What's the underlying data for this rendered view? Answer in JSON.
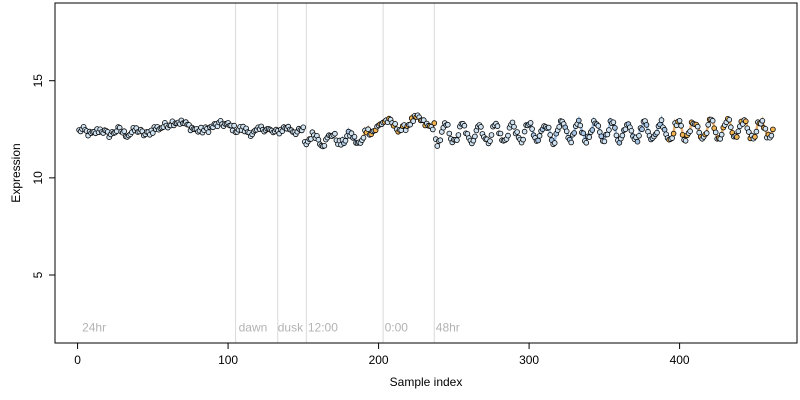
{
  "chart_data": {
    "type": "scatter",
    "title": "",
    "xlabel": "Sample index",
    "ylabel": "Expression",
    "xlim": [
      -15,
      478
    ],
    "ylim": [
      1.5,
      19.0
    ],
    "x_ticks": [
      0,
      100,
      200,
      300,
      400
    ],
    "y_ticks": [
      5,
      10,
      15
    ],
    "grid": false,
    "legend": "none",
    "colors": {
      "point_default": "#cfe3f2",
      "point_orange": "#f2b450",
      "point_blue": "#a7c6e6",
      "line_orange": "#e2a357",
      "line_blue": "#8fb3dd",
      "vline": "#d9d9d9",
      "annotation": "#b3b3b3"
    },
    "vertical_lines": [
      105,
      133,
      152,
      203,
      237
    ],
    "annotations": [
      {
        "text": "24hr",
        "x": 3,
        "y": 2.0
      },
      {
        "text": "dawn",
        "x": 107,
        "y": 2.0
      },
      {
        "text": "dusk",
        "x": 133,
        "y": 2.0
      },
      {
        "text": "12:00",
        "x": 153,
        "y": 2.0
      },
      {
        "text": "0:00",
        "x": 204,
        "y": 2.0
      },
      {
        "text": "48hr",
        "x": 238,
        "y": 2.0
      }
    ],
    "segments": [
      {
        "range": [
          1,
          50
        ],
        "base": 12.35,
        "amp": 0.12,
        "period": 12,
        "phase": 0,
        "trend": 0
      },
      {
        "range": [
          51,
          105
        ],
        "base": 12.75,
        "amp": 0.2,
        "period": 30,
        "phase": 1,
        "trend": -0.004
      },
      {
        "range": [
          106,
          150
        ],
        "base": 12.4,
        "amp": 0.12,
        "period": 15,
        "phase": 0,
        "trend": 0.002
      },
      {
        "range": [
          151,
          190
        ],
        "base": 12.0,
        "amp": 0.25,
        "period": 12,
        "phase": 2,
        "trend": 0
      },
      {
        "range": [
          191,
          237
        ],
        "base": 12.6,
        "amp": 0.25,
        "period": 20,
        "phase": 0,
        "trend": 0.006
      },
      {
        "range": [
          238,
          462
        ],
        "base": 12.25,
        "amp": 0.45,
        "period": 11,
        "phase": 0,
        "trend": 0.0012
      }
    ],
    "series": [
      {
        "range": [
          190,
          237
        ],
        "color": "orange",
        "lines": true
      },
      {
        "range": [
          175,
          186
        ],
        "color": "blue",
        "lines": true
      },
      {
        "range": [
          300,
          392
        ],
        "color": "blue",
        "lines": true
      },
      {
        "range": [
          393,
          462
        ],
        "color": "orange",
        "lines": true
      }
    ]
  }
}
